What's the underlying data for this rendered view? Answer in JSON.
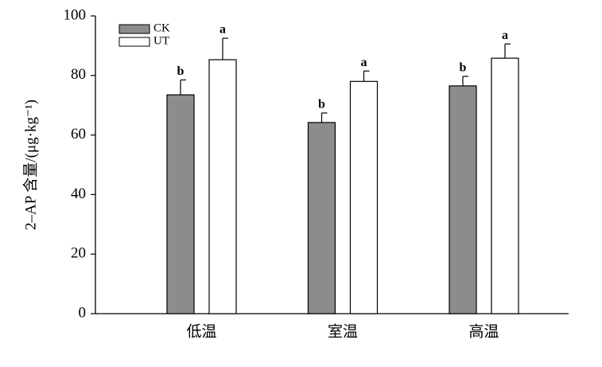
{
  "chart_data": {
    "type": "bar",
    "y_label": "2–AP 含量/(μg·kg⁻¹)",
    "categories": [
      "低温",
      "室温",
      "高温"
    ],
    "series": [
      {
        "name": "CK",
        "color": "#8c8c8c",
        "values": [
          73.5,
          64.2,
          76.5
        ],
        "errors": [
          5,
          3.2,
          3.2
        ],
        "significance": [
          "b",
          "b",
          "b"
        ]
      },
      {
        "name": "UT",
        "color": "#ffffff",
        "values": [
          85.3,
          78,
          85.8
        ],
        "errors": [
          7.2,
          3.5,
          4.8
        ],
        "significance": [
          "a",
          "a",
          "a"
        ]
      }
    ],
    "ylim": [
      0,
      100
    ],
    "yticks": [
      0,
      20,
      40,
      60,
      80,
      100
    ],
    "grid": false,
    "legend": "top-left"
  }
}
